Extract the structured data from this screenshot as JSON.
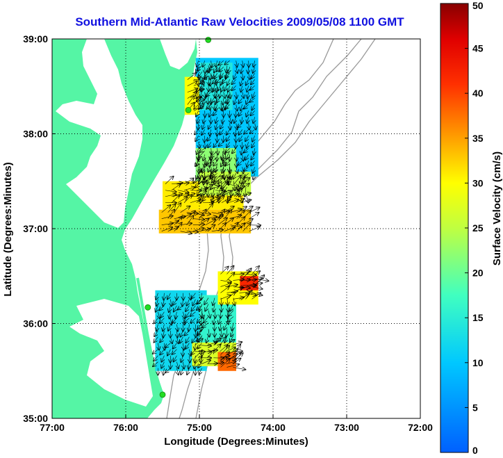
{
  "title": "Southern Mid-Atlantic Raw Velocities 2009/05/08 1100 GMT",
  "axes": {
    "xlabel": "Longitude (Degrees:Minutes)",
    "ylabel": "Latitude (Degrees:Minutes)",
    "xticks": [
      "77:00",
      "76:00",
      "75:00",
      "74:00",
      "73:00",
      "72:00"
    ],
    "yticks": [
      "35:00",
      "36:00",
      "37:00",
      "38:00",
      "39:00"
    ]
  },
  "colorbar": {
    "label": "Surface Velocity (cm/s)",
    "ticks": [
      "0",
      "5",
      "10",
      "15",
      "20",
      "25",
      "30",
      "35",
      "40",
      "45",
      "50"
    ],
    "min": 0,
    "max": 50
  },
  "colors": {
    "land": "#55f5a5",
    "water": "#ffffff",
    "title": "#1010e0",
    "isobath": "#999999",
    "station": "#22dd22"
  },
  "chart_data": {
    "type": "heatmap",
    "x_range_deg_west": [
      77,
      72
    ],
    "y_range_deg_north": [
      35,
      39
    ],
    "grid": true,
    "stations": [
      {
        "lon": 74.88,
        "lat": 38.99
      },
      {
        "lon": 75.15,
        "lat": 38.25
      },
      {
        "lon": 75.7,
        "lat": 36.17
      },
      {
        "lon": 75.5,
        "lat": 35.25
      }
    ],
    "regions": [
      {
        "lon": [
          74.2,
          75.05
        ],
        "lat": [
          37.55,
          38.8
        ],
        "speed": 10
      },
      {
        "lon": [
          74.55,
          75.0
        ],
        "lat": [
          38.25,
          38.75
        ],
        "speed": 14
      },
      {
        "lon": [
          75.0,
          75.2
        ],
        "lat": [
          38.2,
          38.6
        ],
        "speed": 30
      },
      {
        "lon": [
          74.5,
          75.05
        ],
        "lat": [
          37.5,
          37.85
        ],
        "speed": 22
      },
      {
        "lon": [
          74.4,
          75.5
        ],
        "lat": [
          37.2,
          37.5
        ],
        "speed": 31
      },
      {
        "lon": [
          74.3,
          75.55
        ],
        "lat": [
          36.95,
          37.2
        ],
        "speed": 33
      },
      {
        "lon": [
          74.3,
          75.0
        ],
        "lat": [
          37.35,
          37.6
        ],
        "speed": 25
      },
      {
        "lon": [
          74.9,
          75.6
        ],
        "lat": [
          35.5,
          36.35
        ],
        "speed": 12
      },
      {
        "lon": [
          74.5,
          75.0
        ],
        "lat": [
          35.8,
          36.3
        ],
        "speed": 16
      },
      {
        "lon": [
          74.2,
          74.75
        ],
        "lat": [
          36.2,
          36.55
        ],
        "speed": 30
      },
      {
        "lon": [
          74.2,
          74.45
        ],
        "lat": [
          36.35,
          36.5
        ],
        "speed": 42
      },
      {
        "lon": [
          74.5,
          75.1
        ],
        "lat": [
          35.55,
          35.8
        ],
        "speed": 27
      },
      {
        "lon": [
          74.5,
          74.75
        ],
        "lat": [
          35.5,
          35.7
        ],
        "speed": 38
      }
    ]
  }
}
